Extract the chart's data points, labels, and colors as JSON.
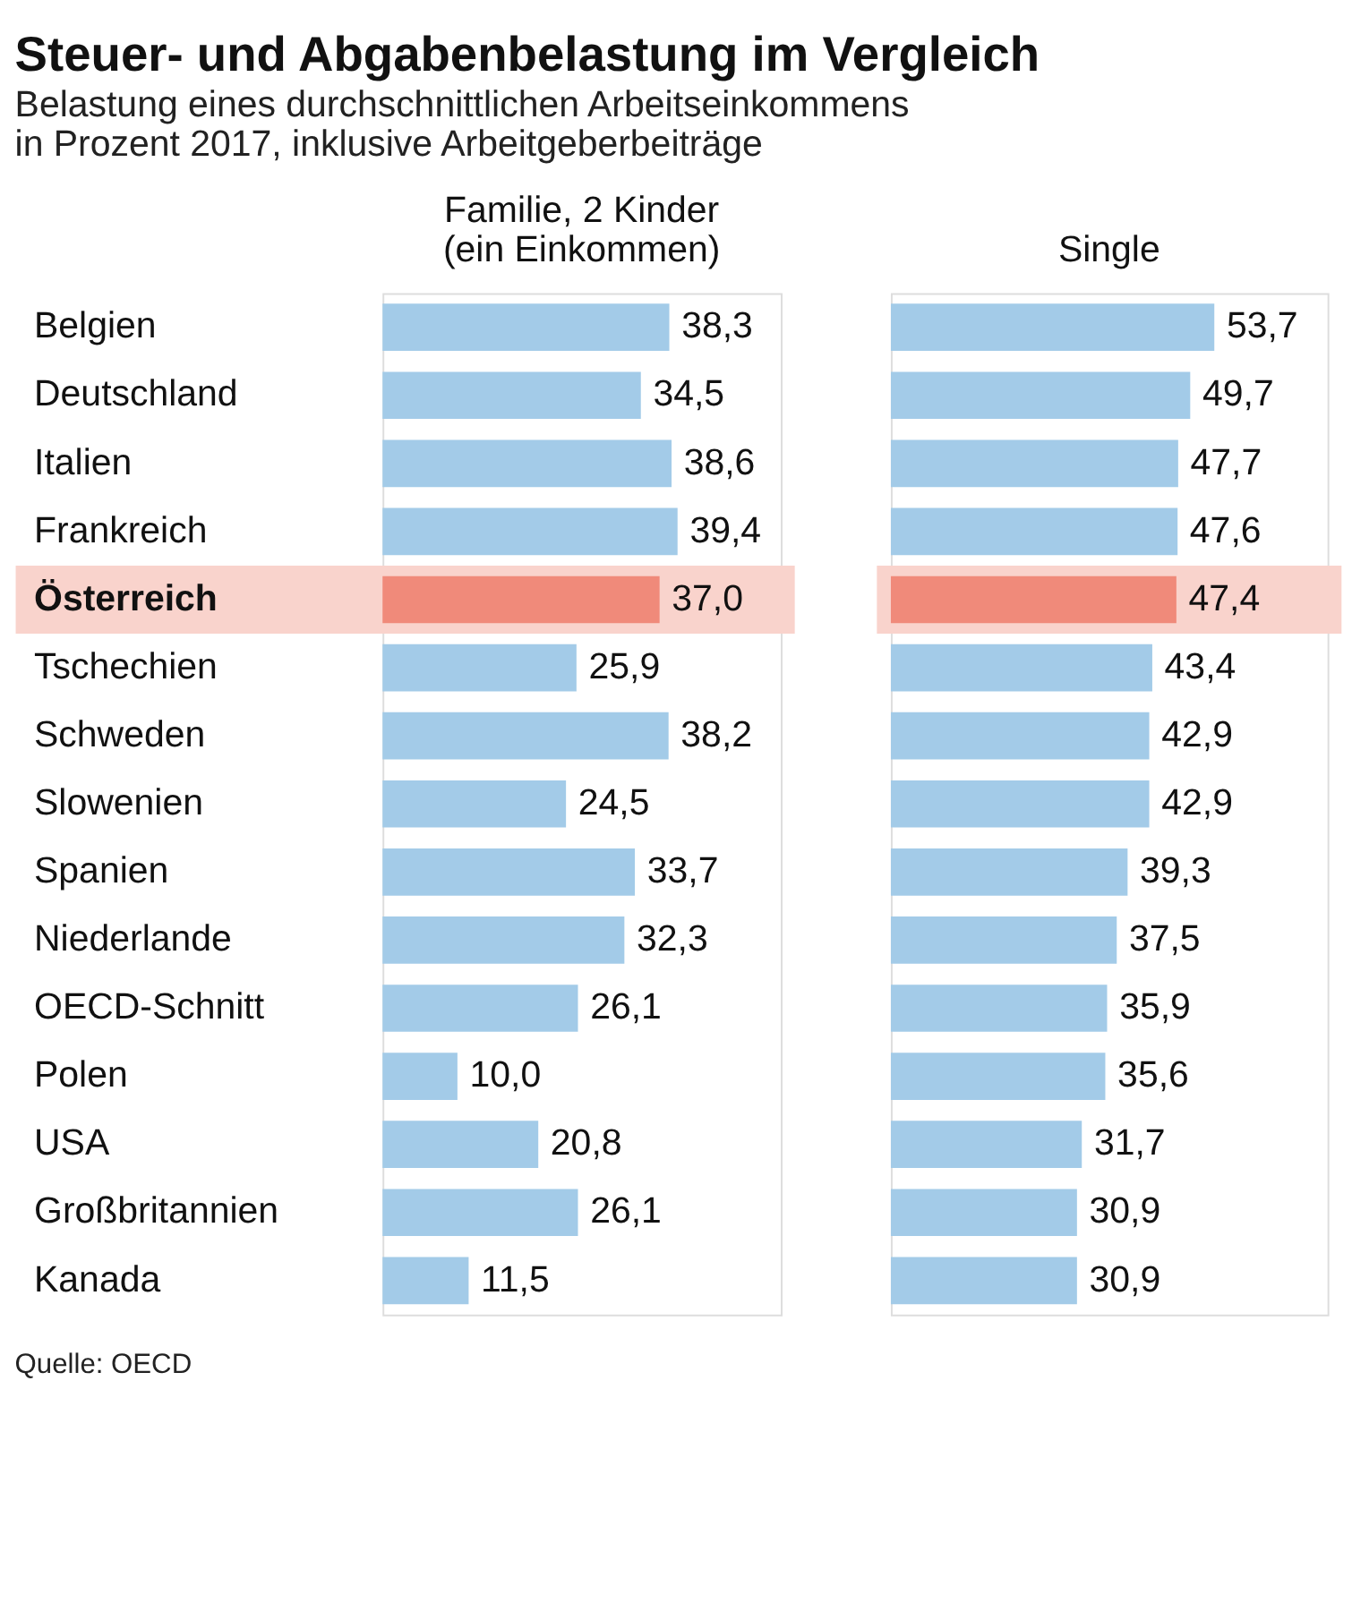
{
  "chart_data": [
    {
      "type": "other",
      "title": "Steuer- und Abgabenbelastung im Vergleich",
      "subtitle": "Belastung eines durchschnittlichen Arbeitseinkommens\nin Prozent 2017, inklusive Arbeitgeberbeiträge",
      "annotations": [
        "Quelle: OECD"
      ]
    },
    {
      "type": "bar",
      "orientation": "horizontal",
      "title": "Familie, 2 Kinder\n(ein Einkommen)",
      "categories": [
        "Belgien",
        "Deutschland",
        "Italien",
        "Frankreich",
        "Österreich",
        "Tschechien",
        "Schweden",
        "Slowenien",
        "Spanien",
        "Niederlande",
        "OECD-Schnitt",
        "Polen",
        "USA",
        "Großbritannien",
        "Kanada"
      ],
      "series": [
        {
          "colors": [
            "#a3cbe8",
            "#a3cbe8",
            "#a3cbe8",
            "#a3cbe8",
            "#f08a7a",
            "#a3cbe8",
            "#a3cbe8",
            "#a3cbe8",
            "#a3cbe8",
            "#a3cbe8",
            "#a3cbe8",
            "#a3cbe8",
            "#a3cbe8",
            "#a3cbe8",
            "#a3cbe8"
          ],
          "values": [
            38.3,
            34.5,
            38.6,
            39.4,
            37.0,
            25.9,
            38.2,
            24.5,
            33.7,
            32.3,
            26.1,
            10.0,
            20.8,
            26.1,
            11.5
          ],
          "value_labels": [
            "38,3",
            "34,5",
            "38,6",
            "39,4",
            "37,0",
            "25,9",
            "38,2",
            "24,5",
            "33,7",
            "32,3",
            "26,1",
            "10,0",
            "20,8",
            "26,1",
            "11,5"
          ]
        }
      ],
      "bands": [
        {
          "axis": "y",
          "from": "Österreich",
          "to": "Österreich",
          "color": "#f9d3cc"
        }
      ],
      "tick_labels": "y"
    },
    {
      "type": "bar",
      "orientation": "horizontal",
      "title": "Single",
      "categories": [
        "Belgien",
        "Deutschland",
        "Italien",
        "Frankreich",
        "Österreich",
        "Tschechien",
        "Schweden",
        "Slowenien",
        "Spanien",
        "Niederlande",
        "OECD-Schnitt",
        "Polen",
        "USA",
        "Großbritannien",
        "Kanada"
      ],
      "series": [
        {
          "colors": [
            "#a3cbe8",
            "#a3cbe8",
            "#a3cbe8",
            "#a3cbe8",
            "#f08a7a",
            "#a3cbe8",
            "#a3cbe8",
            "#a3cbe8",
            "#a3cbe8",
            "#a3cbe8",
            "#a3cbe8",
            "#a3cbe8",
            "#a3cbe8",
            "#a3cbe8",
            "#a3cbe8"
          ],
          "values": [
            53.7,
            49.7,
            47.7,
            47.6,
            47.4,
            43.4,
            42.9,
            42.9,
            39.3,
            37.5,
            35.9,
            35.6,
            31.7,
            30.9,
            30.9
          ],
          "value_labels": [
            "53,7",
            "49,7",
            "47,7",
            "47,6",
            "47,4",
            "43,4",
            "42,9",
            "42,9",
            "39,3",
            "37,5",
            "35,9",
            "35,6",
            "31,7",
            "30,9",
            "30,9"
          ]
        }
      ],
      "bands": [
        {
          "axis": "y",
          "from": "Österreich",
          "to": "Österreich",
          "color": "#f9d3cc"
        }
      ],
      "tick_labels": false
    }
  ]
}
